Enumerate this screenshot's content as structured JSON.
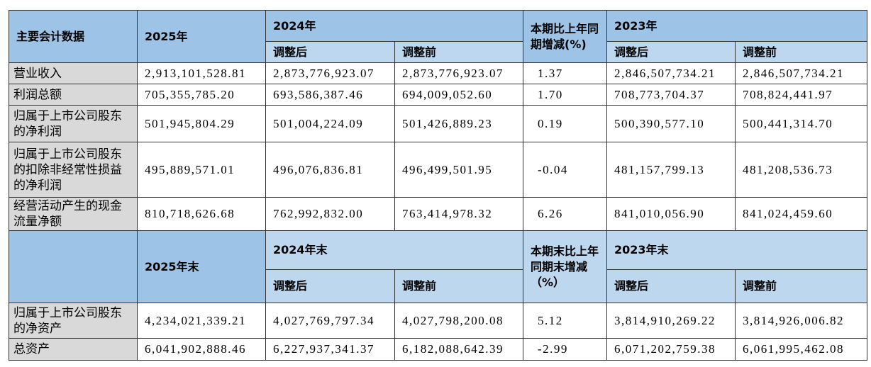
{
  "table1": {
    "header": {
      "title": "主要会计数据",
      "y2025": "2025年",
      "y2024": "2024年",
      "change": "本期比上年同期增减(%)",
      "y2023": "2023年",
      "sub": [
        "调整后",
        "调整前",
        "调整后",
        "调整前"
      ]
    },
    "rows": [
      [
        "营业收入",
        "2,913,101,528.81",
        "2,873,776,923.07",
        "2,873,776,923.07",
        "1.37",
        "2,846,507,734.21",
        "2,846,507,734.21"
      ],
      [
        "利润总额",
        "705,355,785.20",
        "693,586,387.46",
        "694,009,052.60",
        "1.70",
        "708,773,704.37",
        "708,824,441.97"
      ],
      [
        "归属于上市公司股东的净利润",
        "501,945,804.29",
        "501,004,224.09",
        "501,426,889.23",
        "0.19",
        "500,390,577.10",
        "500,441,314.70"
      ],
      [
        "归属于上市公司股东的扣除非经常性损益的净利润",
        "495,889,571.01",
        "496,076,836.81",
        "496,499,501.95",
        "-0.04",
        "481,157,799.13",
        "481,208,536.73"
      ],
      [
        "经营活动产生的现金流量净额",
        "810,718,626.68",
        "762,992,832.00",
        "763,414,978.32",
        "6.26",
        "841,010,056.90",
        "841,024,459.60"
      ]
    ]
  },
  "table2": {
    "header": {
      "y2025": "2025年末",
      "y2024": "2024年末",
      "change": "本期末比上年同期末增减（%）",
      "y2023": "2023年末",
      "sub": [
        "调整后",
        "调整前",
        "调整后",
        "调整前"
      ]
    },
    "rows": [
      [
        "归属于上市公司股东的净资产",
        "4,234,021,339.21",
        "4,027,769,797.34",
        "4,027,798,200.08",
        "5.12",
        "3,814,910,269.22",
        "3,814,926,006.82"
      ],
      [
        "总资产",
        "6,041,902,888.46",
        "6,227,937,341.37",
        "6,182,088,642.39",
        "-2.99",
        "6,071,202,759.38",
        "6,061,995,462.08"
      ]
    ]
  }
}
